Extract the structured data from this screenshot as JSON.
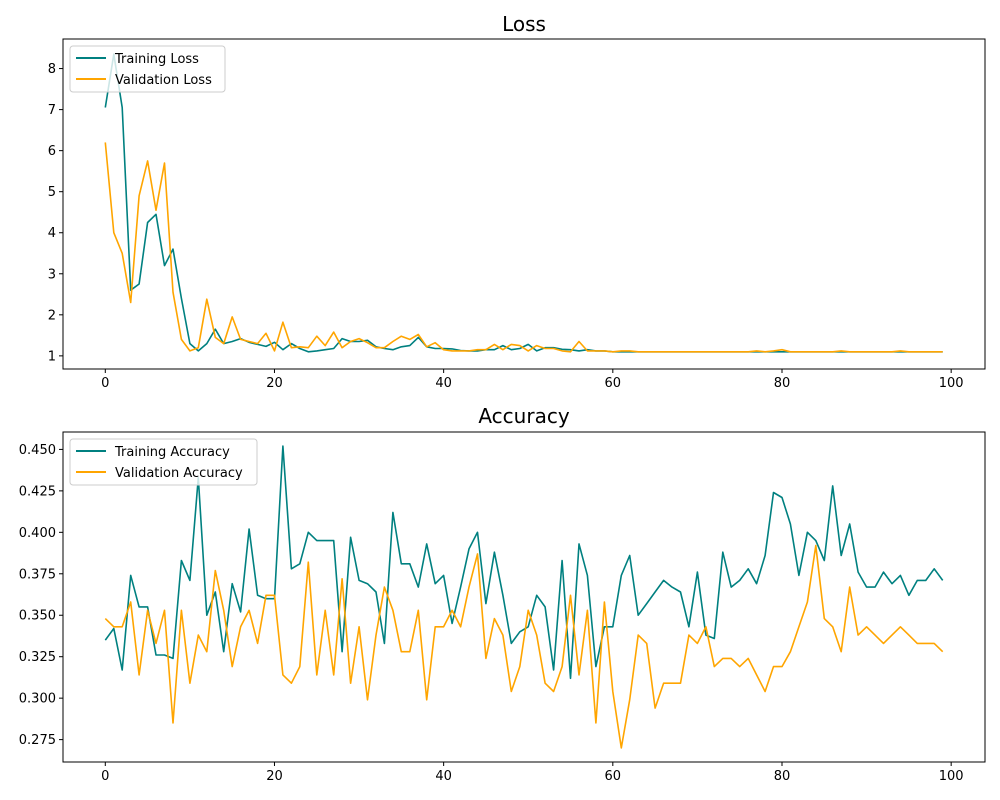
{
  "colors": {
    "training": "#008080",
    "validation": "#ffa500"
  },
  "chart_data": [
    {
      "type": "line",
      "title": "Loss",
      "xlabel": "",
      "ylabel": "",
      "xlim": [
        -5,
        104
      ],
      "ylim": [
        0.68,
        8.72
      ],
      "xticks": [
        0,
        20,
        40,
        60,
        80,
        100
      ],
      "yticks": [
        1,
        2,
        3,
        4,
        5,
        6,
        7,
        8
      ],
      "ytick_labels": [
        "1",
        "2",
        "3",
        "4",
        "5",
        "6",
        "7",
        "8"
      ],
      "legend_position": "top-left",
      "grid": false,
      "x": [
        0,
        1,
        2,
        3,
        4,
        5,
        6,
        7,
        8,
        9,
        10,
        11,
        12,
        13,
        14,
        15,
        16,
        17,
        18,
        19,
        20,
        21,
        22,
        23,
        24,
        25,
        26,
        27,
        28,
        29,
        30,
        31,
        32,
        33,
        34,
        35,
        36,
        37,
        38,
        39,
        40,
        41,
        42,
        43,
        44,
        45,
        46,
        47,
        48,
        49,
        50,
        51,
        52,
        53,
        54,
        55,
        56,
        57,
        58,
        59,
        60,
        61,
        62,
        63,
        64,
        65,
        66,
        67,
        68,
        69,
        70,
        71,
        72,
        73,
        74,
        75,
        76,
        77,
        78,
        79,
        80,
        81,
        82,
        83,
        84,
        85,
        86,
        87,
        88,
        89,
        90,
        91,
        92,
        93,
        94,
        95,
        96,
        97,
        98,
        99
      ],
      "series": [
        {
          "name": "Training Loss",
          "color_key": "training",
          "values": [
            7.05,
            8.35,
            7.05,
            2.6,
            2.75,
            4.25,
            4.45,
            3.2,
            3.6,
            2.4,
            1.3,
            1.12,
            1.3,
            1.65,
            1.3,
            1.35,
            1.42,
            1.33,
            1.28,
            1.23,
            1.33,
            1.15,
            1.3,
            1.18,
            1.1,
            1.12,
            1.15,
            1.18,
            1.42,
            1.35,
            1.35,
            1.38,
            1.22,
            1.18,
            1.15,
            1.22,
            1.25,
            1.45,
            1.22,
            1.18,
            1.18,
            1.17,
            1.13,
            1.12,
            1.12,
            1.15,
            1.15,
            1.25,
            1.15,
            1.18,
            1.28,
            1.12,
            1.2,
            1.2,
            1.16,
            1.15,
            1.12,
            1.15,
            1.12,
            1.12,
            1.1,
            1.1,
            1.1,
            1.1,
            1.1,
            1.1,
            1.1,
            1.1,
            1.1,
            1.1,
            1.1,
            1.1,
            1.1,
            1.1,
            1.1,
            1.1,
            1.1,
            1.1,
            1.1,
            1.1,
            1.1,
            1.1,
            1.1,
            1.1,
            1.1,
            1.1,
            1.1,
            1.1,
            1.1,
            1.1,
            1.1,
            1.1,
            1.1,
            1.1,
            1.1,
            1.1,
            1.1,
            1.1,
            1.1,
            1.1
          ]
        },
        {
          "name": "Validation Loss",
          "color_key": "validation",
          "values": [
            6.2,
            4.0,
            3.5,
            2.3,
            4.9,
            5.75,
            4.55,
            5.7,
            2.55,
            1.4,
            1.12,
            1.2,
            2.38,
            1.45,
            1.3,
            1.95,
            1.4,
            1.35,
            1.3,
            1.55,
            1.12,
            1.82,
            1.2,
            1.22,
            1.2,
            1.48,
            1.25,
            1.58,
            1.2,
            1.35,
            1.42,
            1.32,
            1.2,
            1.2,
            1.35,
            1.48,
            1.4,
            1.52,
            1.22,
            1.32,
            1.15,
            1.12,
            1.12,
            1.12,
            1.15,
            1.15,
            1.28,
            1.15,
            1.28,
            1.25,
            1.12,
            1.25,
            1.18,
            1.18,
            1.12,
            1.1,
            1.35,
            1.12,
            1.12,
            1.12,
            1.1,
            1.12,
            1.12,
            1.1,
            1.1,
            1.1,
            1.1,
            1.1,
            1.1,
            1.1,
            1.1,
            1.1,
            1.1,
            1.1,
            1.1,
            1.1,
            1.1,
            1.12,
            1.1,
            1.12,
            1.15,
            1.1,
            1.1,
            1.1,
            1.1,
            1.1,
            1.1,
            1.12,
            1.1,
            1.1,
            1.1,
            1.1,
            1.1,
            1.1,
            1.12,
            1.1,
            1.1,
            1.1,
            1.1,
            1.1
          ]
        }
      ]
    },
    {
      "type": "line",
      "title": "Accuracy",
      "xlabel": "",
      "ylabel": "",
      "xlim": [
        -5,
        104
      ],
      "ylim": [
        0.2615,
        0.4605
      ],
      "xticks": [
        0,
        20,
        40,
        60,
        80,
        100
      ],
      "yticks": [
        0.275,
        0.3,
        0.325,
        0.35,
        0.375,
        0.4,
        0.425,
        0.45
      ],
      "ytick_labels": [
        "0.275",
        "0.300",
        "0.325",
        "0.350",
        "0.375",
        "0.400",
        "0.425",
        "0.450"
      ],
      "legend_position": "top-left",
      "grid": false,
      "x": [
        0,
        1,
        2,
        3,
        4,
        5,
        6,
        7,
        8,
        9,
        10,
        11,
        12,
        13,
        14,
        15,
        16,
        17,
        18,
        19,
        20,
        21,
        22,
        23,
        24,
        25,
        26,
        27,
        28,
        29,
        30,
        31,
        32,
        33,
        34,
        35,
        36,
        37,
        38,
        39,
        40,
        41,
        42,
        43,
        44,
        45,
        46,
        47,
        48,
        49,
        50,
        51,
        52,
        53,
        54,
        55,
        56,
        57,
        58,
        59,
        60,
        61,
        62,
        63,
        64,
        65,
        66,
        67,
        68,
        69,
        70,
        71,
        72,
        73,
        74,
        75,
        76,
        77,
        78,
        79,
        80,
        81,
        82,
        83,
        84,
        85,
        86,
        87,
        88,
        89,
        90,
        91,
        92,
        93,
        94,
        95,
        96,
        97,
        98,
        99
      ],
      "series": [
        {
          "name": "Training Accuracy",
          "color_key": "training",
          "values": [
            0.335,
            0.342,
            0.317,
            0.374,
            0.355,
            0.355,
            0.326,
            0.326,
            0.324,
            0.383,
            0.371,
            0.433,
            0.35,
            0.364,
            0.328,
            0.369,
            0.352,
            0.402,
            0.362,
            0.36,
            0.36,
            0.452,
            0.378,
            0.381,
            0.4,
            0.395,
            0.395,
            0.395,
            0.328,
            0.397,
            0.371,
            0.369,
            0.364,
            0.333,
            0.412,
            0.381,
            0.381,
            0.367,
            0.393,
            0.369,
            0.374,
            0.345,
            0.367,
            0.39,
            0.4,
            0.357,
            0.388,
            0.362,
            0.333,
            0.34,
            0.343,
            0.362,
            0.355,
            0.317,
            0.383,
            0.312,
            0.393,
            0.374,
            0.319,
            0.343,
            0.343,
            0.374,
            0.386,
            0.35,
            0.357,
            0.364,
            0.371,
            0.367,
            0.364,
            0.343,
            0.376,
            0.338,
            0.336,
            0.388,
            0.367,
            0.371,
            0.378,
            0.369,
            0.386,
            0.424,
            0.421,
            0.405,
            0.374,
            0.4,
            0.395,
            0.383,
            0.428,
            0.386,
            0.405,
            0.376,
            0.367,
            0.367,
            0.376,
            0.369,
            0.374,
            0.362,
            0.371,
            0.371,
            0.378,
            0.371
          ]
        },
        {
          "name": "Validation Accuracy",
          "color_key": "validation",
          "values": [
            0.348,
            0.343,
            0.343,
            0.358,
            0.314,
            0.353,
            0.333,
            0.353,
            0.285,
            0.353,
            0.309,
            0.338,
            0.328,
            0.377,
            0.353,
            0.319,
            0.343,
            0.353,
            0.333,
            0.362,
            0.362,
            0.314,
            0.309,
            0.319,
            0.382,
            0.314,
            0.353,
            0.314,
            0.372,
            0.309,
            0.343,
            0.299,
            0.338,
            0.367,
            0.353,
            0.328,
            0.328,
            0.353,
            0.299,
            0.343,
            0.343,
            0.353,
            0.343,
            0.367,
            0.387,
            0.324,
            0.348,
            0.338,
            0.304,
            0.319,
            0.353,
            0.338,
            0.309,
            0.304,
            0.319,
            0.362,
            0.314,
            0.353,
            0.285,
            0.358,
            0.304,
            0.27,
            0.299,
            0.338,
            0.333,
            0.294,
            0.309,
            0.309,
            0.309,
            0.338,
            0.333,
            0.343,
            0.319,
            0.324,
            0.324,
            0.319,
            0.324,
            0.314,
            0.304,
            0.319,
            0.319,
            0.328,
            0.343,
            0.358,
            0.392,
            0.348,
            0.343,
            0.328,
            0.367,
            0.338,
            0.343,
            0.338,
            0.333,
            0.338,
            0.343,
            0.338,
            0.333,
            0.333,
            0.333,
            0.328
          ]
        }
      ]
    }
  ]
}
